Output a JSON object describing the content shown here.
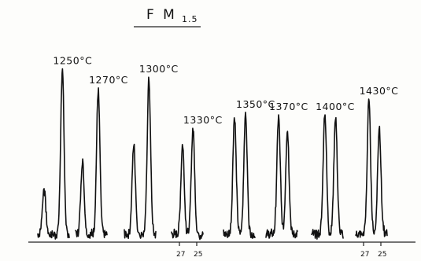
{
  "chart_data": {
    "type": "line",
    "title": "F M",
    "title_subscript": "1.5",
    "xlabel": "",
    "ylabel": "",
    "grid": false,
    "axis_ticks": [
      {
        "label": "27",
        "series": 4
      },
      {
        "label": "25",
        "series": 4
      },
      {
        "label": "27",
        "series": 8
      },
      {
        "label": "25",
        "series": 8
      }
    ],
    "series": [
      {
        "name": "1250°C",
        "peaks": [
          {
            "pos": 0.2,
            "h": 0.28
          },
          {
            "pos": 0.78,
            "h": 1.0
          }
        ]
      },
      {
        "name": "1270°C",
        "peaks": [
          {
            "pos": 0.22,
            "h": 0.45
          },
          {
            "pos": 0.72,
            "h": 0.88
          }
        ]
      },
      {
        "name": "1300°C",
        "peaks": [
          {
            "pos": 0.3,
            "h": 0.55
          },
          {
            "pos": 0.78,
            "h": 0.95
          }
        ]
      },
      {
        "name": "1330°C",
        "peaks": [
          {
            "pos": 0.35,
            "h": 0.55
          },
          {
            "pos": 0.68,
            "h": 0.65
          }
        ]
      },
      {
        "name": "1350°C",
        "peaks": [
          {
            "pos": 0.35,
            "h": 0.72
          },
          {
            "pos": 0.7,
            "h": 0.74
          }
        ]
      },
      {
        "name": "1370°C",
        "peaks": [
          {
            "pos": 0.4,
            "h": 0.72
          },
          {
            "pos": 0.68,
            "h": 0.64
          }
        ]
      },
      {
        "name": "1400°C",
        "peaks": [
          {
            "pos": 0.42,
            "h": 0.75
          },
          {
            "pos": 0.76,
            "h": 0.72
          }
        ]
      },
      {
        "name": "1430°C",
        "peaks": [
          {
            "pos": 0.42,
            "h": 0.82
          },
          {
            "pos": 0.75,
            "h": 0.66
          }
        ]
      }
    ]
  }
}
